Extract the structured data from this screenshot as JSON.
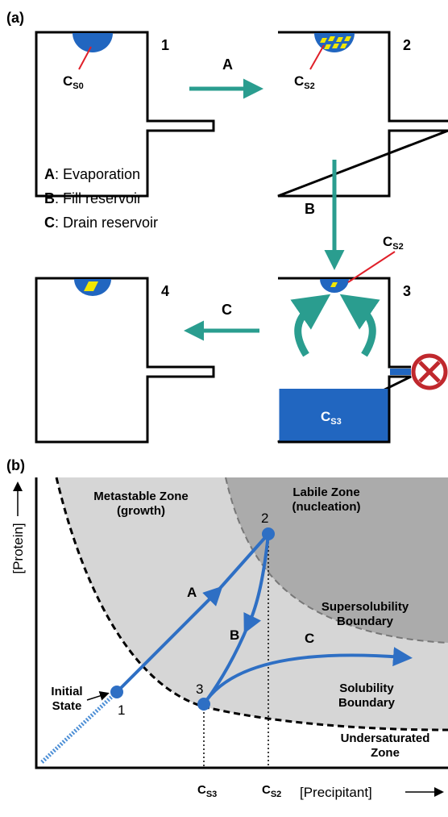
{
  "panel_a": {
    "label": "(a)",
    "steps": [
      {
        "number": "1",
        "conc": {
          "letter": "C",
          "sub": "S0"
        }
      },
      {
        "number": "2",
        "conc": {
          "letter": "C",
          "sub": "S2"
        }
      },
      {
        "number": "3",
        "conc": {
          "letter": "C",
          "sub": "S2"
        },
        "reservoir": {
          "letter": "C",
          "sub": "S3"
        }
      },
      {
        "number": "4"
      }
    ],
    "arrows": [
      "A",
      "B",
      "C"
    ],
    "legend": [
      {
        "key": "A",
        "text": ": Evaporation"
      },
      {
        "key": "B",
        "text": ": Fill reservoir"
      },
      {
        "key": "C",
        "text": ": Drain reservoir"
      }
    ]
  },
  "panel_b": {
    "label": "(b)",
    "zones": {
      "metastable": [
        "Metastable Zone",
        "(growth)"
      ],
      "labile": [
        "Labile Zone",
        "(nucleation)"
      ],
      "supersolubility": [
        "Supersolubility",
        "Boundary"
      ],
      "solubility": [
        "Solubility",
        "Boundary"
      ],
      "undersaturated": [
        "Undersaturated",
        "Zone"
      ]
    },
    "initial_state": [
      "Initial",
      "State"
    ],
    "points": [
      "1",
      "2",
      "3"
    ],
    "paths": [
      "A",
      "B",
      "C"
    ],
    "y_axis": "[Protein]",
    "x_axis": "[Precipitant]",
    "x_ticks": [
      {
        "letter": "C",
        "sub": "S3"
      },
      {
        "letter": "C",
        "sub": "S2"
      }
    ]
  }
}
